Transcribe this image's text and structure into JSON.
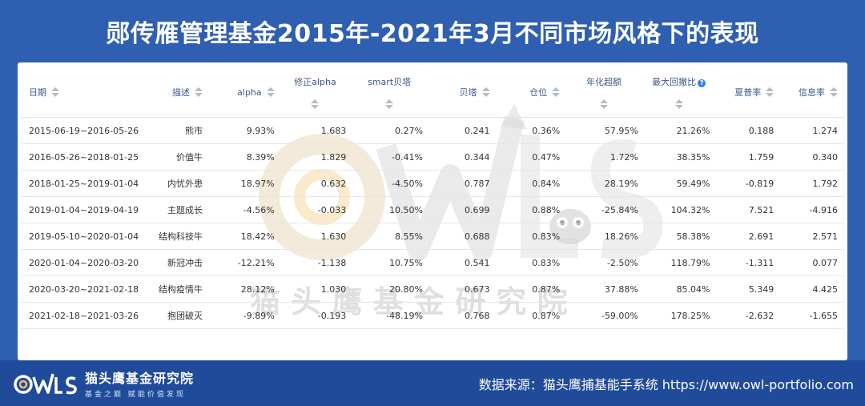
{
  "title": "郧传雁管理基金2015年-2021年3月不同市场风格下的表现",
  "table": {
    "headers": {
      "date": "日期",
      "desc": "描述",
      "alpha": "alpha",
      "adj_alpha": "修正alpha",
      "smart_beta": "smart贝塔",
      "beta": "贝塔",
      "position": "仓位",
      "excess": "年化超额",
      "max_dd": "最大回撤比",
      "sharpe": "夏普率",
      "info": "信息率"
    },
    "rows": [
      {
        "date": "2015-06-19~2016-05-26",
        "desc": "熊市",
        "alpha": "9.93%",
        "adj_alpha": "1.683",
        "smart_beta": "0.27%",
        "beta": "0.241",
        "position": "0.36%",
        "excess": "57.95%",
        "max_dd": "21.26%",
        "sharpe": "0.188",
        "info": "1.274"
      },
      {
        "date": "2016-05-26~2018-01-25",
        "desc": "价值牛",
        "alpha": "8.39%",
        "adj_alpha": "1.829",
        "smart_beta": "-0.41%",
        "beta": "0.344",
        "position": "0.47%",
        "excess": "1.72%",
        "max_dd": "38.35%",
        "sharpe": "1.759",
        "info": "0.340"
      },
      {
        "date": "2018-01-25~2019-01-04",
        "desc": "内忧外患",
        "alpha": "18.97%",
        "adj_alpha": "0.632",
        "smart_beta": "-4.50%",
        "beta": "0.787",
        "position": "0.84%",
        "excess": "28.19%",
        "max_dd": "59.49%",
        "sharpe": "-0.819",
        "info": "1.792"
      },
      {
        "date": "2019-01-04~2019-04-19",
        "desc": "主题成长",
        "alpha": "-4.56%",
        "adj_alpha": "-0.033",
        "smart_beta": "10.50%",
        "beta": "0.699",
        "position": "0.88%",
        "excess": "-25.84%",
        "max_dd": "104.32%",
        "sharpe": "7.521",
        "info": "-4.916"
      },
      {
        "date": "2019-05-10~2020-01-04",
        "desc": "结构科技牛",
        "alpha": "18.42%",
        "adj_alpha": "1.630",
        "smart_beta": "8.55%",
        "beta": "0.688",
        "position": "0.83%",
        "excess": "18.26%",
        "max_dd": "58.38%",
        "sharpe": "2.691",
        "info": "2.571"
      },
      {
        "date": "2020-01-04~2020-03-20",
        "desc": "新冠冲击",
        "alpha": "-12.21%",
        "adj_alpha": "-1.138",
        "smart_beta": "10.75%",
        "beta": "0.541",
        "position": "0.83%",
        "excess": "-2.50%",
        "max_dd": "118.79%",
        "sharpe": "-1.311",
        "info": "0.077"
      },
      {
        "date": "2020-03-20~2021-02-18",
        "desc": "结构疫情牛",
        "alpha": "28.12%",
        "adj_alpha": "1.030",
        "smart_beta": "20.80%",
        "beta": "0.673",
        "position": "0.87%",
        "excess": "37.88%",
        "max_dd": "85.04%",
        "sharpe": "5.349",
        "info": "4.425"
      },
      {
        "date": "2021-02-18~2021-03-26",
        "desc": "抱团破灭",
        "alpha": "-9.89%",
        "adj_alpha": "-0.193",
        "smart_beta": "-48.19%",
        "beta": "0.768",
        "position": "0.87%",
        "excess": "-59.00%",
        "max_dd": "178.25%",
        "sharpe": "-2.632",
        "info": "-1.655"
      }
    ]
  },
  "watermark": {
    "logo_text": "OWLS",
    "org_text": "猫 头 鹰 基 金 研 究 院"
  },
  "footer": {
    "brand_name": "猫头鹰基金研究院",
    "brand_sub": "基金之巅 赋能价值发现",
    "source": "数据来源：猫头鹰捕基能手系统  https://www.owl-portfolio.com"
  },
  "colors": {
    "background": "#2f5fb0",
    "footer": "#204a9a",
    "header_text": "#3b5a8a",
    "help_icon": "#2f7ff0",
    "watermark_accent": "#f5c16c"
  }
}
